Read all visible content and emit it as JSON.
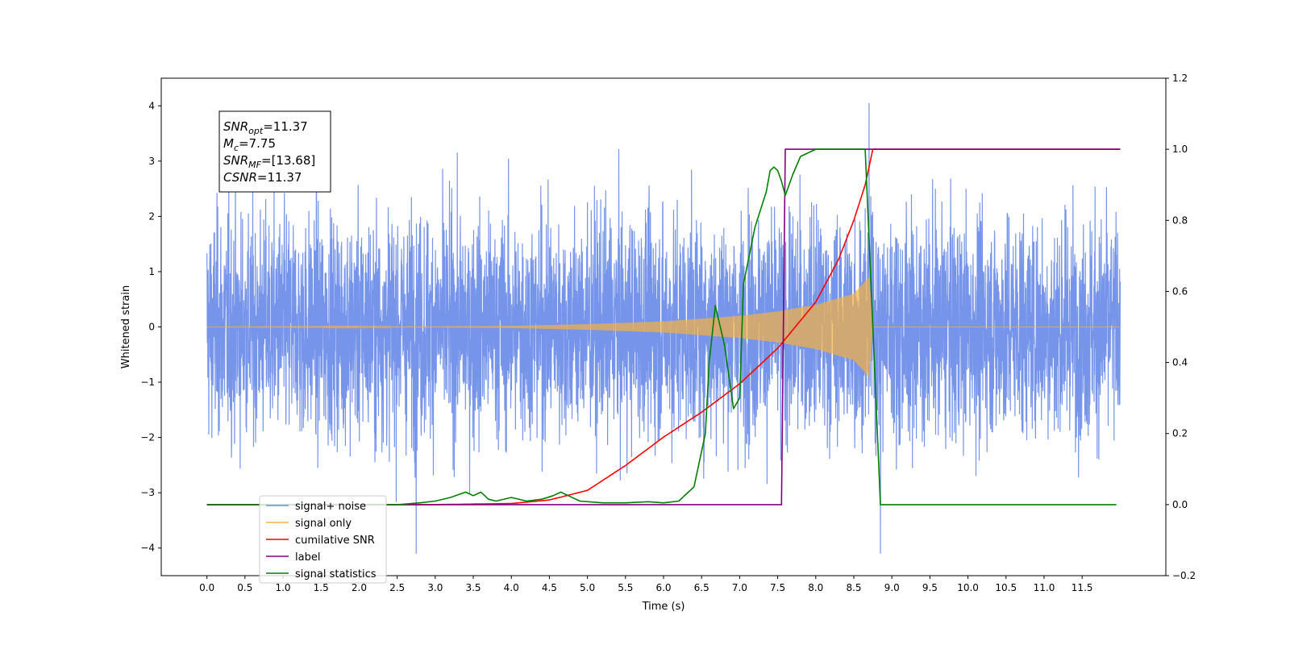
{
  "chart_data": {
    "type": "line",
    "title": "",
    "xlabel": "Time (s)",
    "ylabel": "Whitened strain",
    "y2label": "",
    "xlim": [
      -0.6,
      12.6
    ],
    "ylim": [
      -4.5,
      4.5
    ],
    "y2lim": [
      -0.2,
      1.2
    ],
    "x_ticks": [
      0.0,
      0.5,
      1.0,
      1.5,
      2.0,
      2.5,
      3.0,
      3.5,
      4.0,
      4.5,
      5.0,
      5.5,
      6.0,
      6.5,
      7.0,
      7.5,
      8.0,
      8.5,
      9.0,
      9.5,
      10.0,
      10.5,
      11.0,
      11.5
    ],
    "x_tick_labels": [
      "0.0",
      "0.5",
      "1.0",
      "1.5",
      "2.0",
      "2.5",
      "3.0",
      "3.5",
      "4.0",
      "4.5",
      "5.0",
      "5.5",
      "6.0",
      "6.5",
      "7.0",
      "7.5",
      "8.0",
      "8.5",
      "9.0",
      "9.5",
      "10.0",
      "10.5",
      "11.0",
      "11.5"
    ],
    "y_ticks": [
      -4,
      -3,
      -2,
      -1,
      0,
      1,
      2,
      3,
      4
    ],
    "y_tick_labels": [
      "−4",
      "−3",
      "−2",
      "−1",
      "0",
      "1",
      "2",
      "3",
      "4"
    ],
    "y2_ticks": [
      -0.2,
      0.0,
      0.2,
      0.4,
      0.6,
      0.8,
      1.0,
      1.2
    ],
    "y2_tick_labels": [
      "−0.2",
      "0.0",
      "0.2",
      "0.4",
      "0.6",
      "0.8",
      "1.0",
      "1.2"
    ],
    "grid": false,
    "legend_position": "lower-left",
    "series": [
      {
        "name": "signal+ noise",
        "axis": "left",
        "color": "#6f8ee8",
        "kind": "noise",
        "x_range": [
          0.0,
          12.0
        ],
        "typical_range": [
          -2.0,
          2.0
        ],
        "peaks": [
          4.05,
          -4.1
        ]
      },
      {
        "name": "signal only",
        "axis": "left",
        "color": "#f5b041",
        "kind": "chirp",
        "x_range": [
          0.0,
          8.75
        ],
        "envelope": [
          [
            0.0,
            0.0
          ],
          [
            3.0,
            0.01
          ],
          [
            4.0,
            0.02
          ],
          [
            5.0,
            0.05
          ],
          [
            6.0,
            0.1
          ],
          [
            6.5,
            0.15
          ],
          [
            7.0,
            0.2
          ],
          [
            7.5,
            0.28
          ],
          [
            8.0,
            0.4
          ],
          [
            8.5,
            0.6
          ],
          [
            8.7,
            0.9
          ],
          [
            8.75,
            0.0
          ]
        ]
      },
      {
        "name": "cumilative SNR",
        "axis": "right",
        "color": "#ff0000",
        "x": [
          0.0,
          3.0,
          4.0,
          4.5,
          5.0,
          5.5,
          6.0,
          6.5,
          7.0,
          7.5,
          8.0,
          8.3,
          8.5,
          8.65,
          8.75,
          12.0
        ],
        "y": [
          0.0,
          0.0,
          0.003,
          0.013,
          0.04,
          0.11,
          0.19,
          0.26,
          0.34,
          0.44,
          0.57,
          0.69,
          0.8,
          0.9,
          1.0,
          1.0
        ]
      },
      {
        "name": "label",
        "axis": "right",
        "color": "#800080",
        "x": [
          0.0,
          7.55,
          7.6,
          8.75,
          8.75,
          12.0
        ],
        "y": [
          0.0,
          0.0,
          1.0,
          1.0,
          1.0,
          1.0
        ]
      },
      {
        "name": "signal statistics",
        "axis": "right",
        "color": "#008000",
        "x": [
          0.0,
          2.5,
          2.8,
          3.0,
          3.2,
          3.4,
          3.5,
          3.6,
          3.7,
          3.8,
          4.0,
          4.2,
          4.4,
          4.55,
          4.65,
          4.75,
          4.9,
          5.2,
          5.5,
          5.8,
          6.0,
          6.2,
          6.4,
          6.55,
          6.6,
          6.68,
          6.8,
          6.92,
          7.0,
          7.05,
          7.2,
          7.35,
          7.4,
          7.45,
          7.5,
          7.55,
          7.6,
          7.7,
          7.8,
          8.0,
          8.5,
          8.65,
          8.75,
          8.85,
          9.0,
          11.95
        ],
        "y": [
          0.0,
          0.0,
          0.005,
          0.01,
          0.02,
          0.035,
          0.025,
          0.035,
          0.015,
          0.01,
          0.02,
          0.01,
          0.015,
          0.025,
          0.035,
          0.025,
          0.01,
          0.005,
          0.005,
          0.008,
          0.005,
          0.01,
          0.05,
          0.2,
          0.4,
          0.56,
          0.45,
          0.27,
          0.3,
          0.62,
          0.78,
          0.88,
          0.94,
          0.95,
          0.94,
          0.91,
          0.87,
          0.93,
          0.98,
          1.0,
          1.0,
          1.0,
          0.5,
          0.0,
          0.0,
          0.0
        ]
      }
    ],
    "annotation": {
      "lines": [
        {
          "main": "SNR",
          "sub": "opt",
          "value": "=11.37"
        },
        {
          "main": "M",
          "sub": "c",
          "value": "=7.75"
        },
        {
          "main": "SNR",
          "sub": "MF",
          "value": "=[13.68]"
        },
        {
          "main": "CSNR",
          "sub": "",
          "value": "=11.37"
        }
      ]
    }
  }
}
